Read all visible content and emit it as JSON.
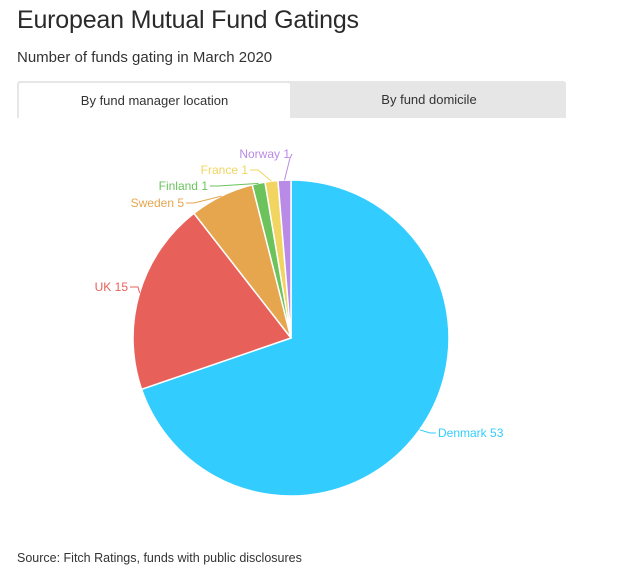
{
  "header": {
    "title": "European Mutual Fund Gatings",
    "subtitle": "Number of funds gating in March 2020"
  },
  "tabs": [
    {
      "label": "By fund manager location",
      "active": true
    },
    {
      "label": "By fund domicile",
      "active": false
    }
  ],
  "chart_data": {
    "type": "pie",
    "title": "",
    "slices": [
      {
        "label": "Denmark",
        "value": 53,
        "color": "#33ccff"
      },
      {
        "label": "UK",
        "value": 15,
        "color": "#e8605a"
      },
      {
        "label": "Sweden",
        "value": 5,
        "color": "#e5a64e"
      },
      {
        "label": "Finland",
        "value": 1,
        "color": "#6cc35c"
      },
      {
        "label": "France",
        "value": 1,
        "color": "#f2d461"
      },
      {
        "label": "Norway",
        "value": 1,
        "color": "#b98ae6"
      }
    ]
  },
  "footer": {
    "source": "Source: Fitch Ratings, funds with public disclosures"
  }
}
